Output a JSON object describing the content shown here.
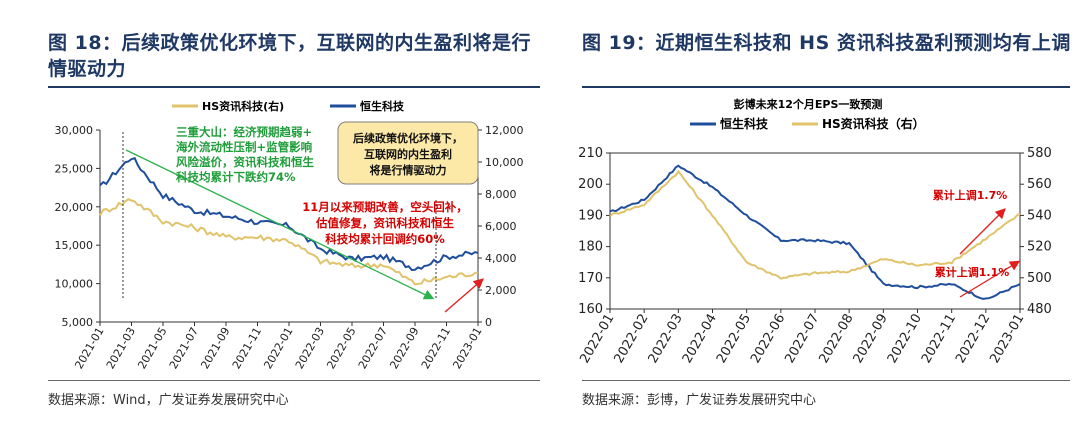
{
  "panels": [
    {
      "title": "图 18：后续政策优化环境下，互联网的内生盈利将是行情驱动力",
      "source": "数据来源：Wind，广发证券发展研究中心",
      "legend": {
        "hs_it": "HS资讯科技(右)",
        "hsi": "恒生科技"
      },
      "annotations": {
        "green": [
          "三重大山：经济预期趋弱+",
          "海外流动性压制+监管影响",
          "风险溢价，资讯科技和恒生",
          "科技均累计下跌约74%"
        ],
        "red": [
          "11月以来预期改善，空头回补，",
          "估值修复，资讯科技和恒生",
          "科技均累计回调约60%"
        ],
        "box": [
          "后续政策优化环境下，",
          "互联网的内生盈利",
          "将是行情驱动力"
        ]
      }
    },
    {
      "title": "图 19：近期恒生科技和 HS 资讯科技盈利预测均有上调",
      "source": "数据来源：彭博，广发证券发展研究中心",
      "chart_title": "彭博未来12个月EPS一致预测",
      "legend": {
        "hsi": "恒生科技",
        "hs_it": "HS资讯科技（右）"
      },
      "annotations": {
        "up1": "累计上调1.7%",
        "up2": "累计上调1.1%"
      }
    }
  ],
  "chart_data": [
    {
      "type": "line",
      "x": [
        "2021-01",
        "2021-03",
        "2021-05",
        "2021-07",
        "2021-09",
        "2021-11",
        "2022-01",
        "2022-03",
        "2022-05",
        "2022-07",
        "2022-09",
        "2022-11",
        "2023-01"
      ],
      "ylim": [
        5000,
        30000
      ],
      "yticks": [
        "5,000",
        "10,000",
        "15,000",
        "20,000",
        "25,000",
        "30,000"
      ],
      "y2lim": [
        0,
        12000
      ],
      "y2ticks": [
        "0",
        "2,000",
        "4,000",
        "6,000",
        "8,000",
        "10,000",
        "12,000"
      ],
      "series": [
        {
          "name": "恒生科技",
          "axis": "left",
          "color": "#1f4e9c",
          "values": [
            22500,
            26500,
            21500,
            19500,
            18800,
            18000,
            17500,
            14500,
            13200,
            13500,
            12000,
            13500,
            14000
          ]
        },
        {
          "name": "HS资讯科技(右)",
          "axis": "right",
          "color": "#e0c36a",
          "values": [
            6800,
            7700,
            6300,
            5900,
            5300,
            5300,
            5100,
            3800,
            3500,
            3600,
            2400,
            2800,
            3100
          ]
        }
      ]
    },
    {
      "type": "line",
      "x": [
        "2022-01",
        "2022-02",
        "2022-03",
        "2022-04",
        "2022-05",
        "2022-06",
        "2022-07",
        "2022-08",
        "2022-09",
        "2022-10",
        "2022-11",
        "2022-12",
        "2023-01"
      ],
      "ylim": [
        160,
        210
      ],
      "yticks": [
        "160",
        "170",
        "180",
        "190",
        "200",
        "210"
      ],
      "y2lim": [
        480,
        580
      ],
      "y2ticks": [
        "480",
        "500",
        "520",
        "540",
        "560",
        "580"
      ],
      "series": [
        {
          "name": "恒生科技",
          "axis": "left",
          "color": "#1f4e9c",
          "values": [
            191,
            195,
            206,
            199,
            190,
            182,
            182,
            181,
            168,
            167,
            168,
            163,
            168
          ]
        },
        {
          "name": "HS资讯科技（右）",
          "axis": "right",
          "color": "#e0c36a",
          "values": [
            540,
            547,
            568,
            540,
            510,
            500,
            503,
            504,
            512,
            508,
            510,
            525,
            541
          ]
        }
      ]
    }
  ]
}
